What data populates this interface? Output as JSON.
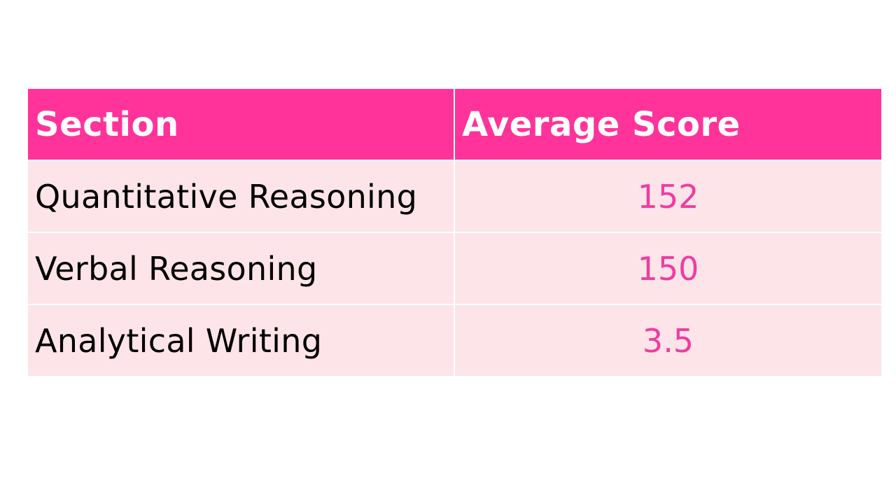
{
  "table": {
    "headers": {
      "section": "Section",
      "average_score": "Average Score"
    },
    "rows": [
      {
        "section": "Quantitative Reasoning",
        "score": "152"
      },
      {
        "section": "Verbal Reasoning",
        "score": "150"
      },
      {
        "section": "Analytical Writing",
        "score": "3.5"
      }
    ]
  },
  "colors": {
    "header_bg": "#ff3399",
    "header_text": "#ffffff",
    "row_bg": "#fde4e8",
    "score_text": "#f03ca0"
  }
}
